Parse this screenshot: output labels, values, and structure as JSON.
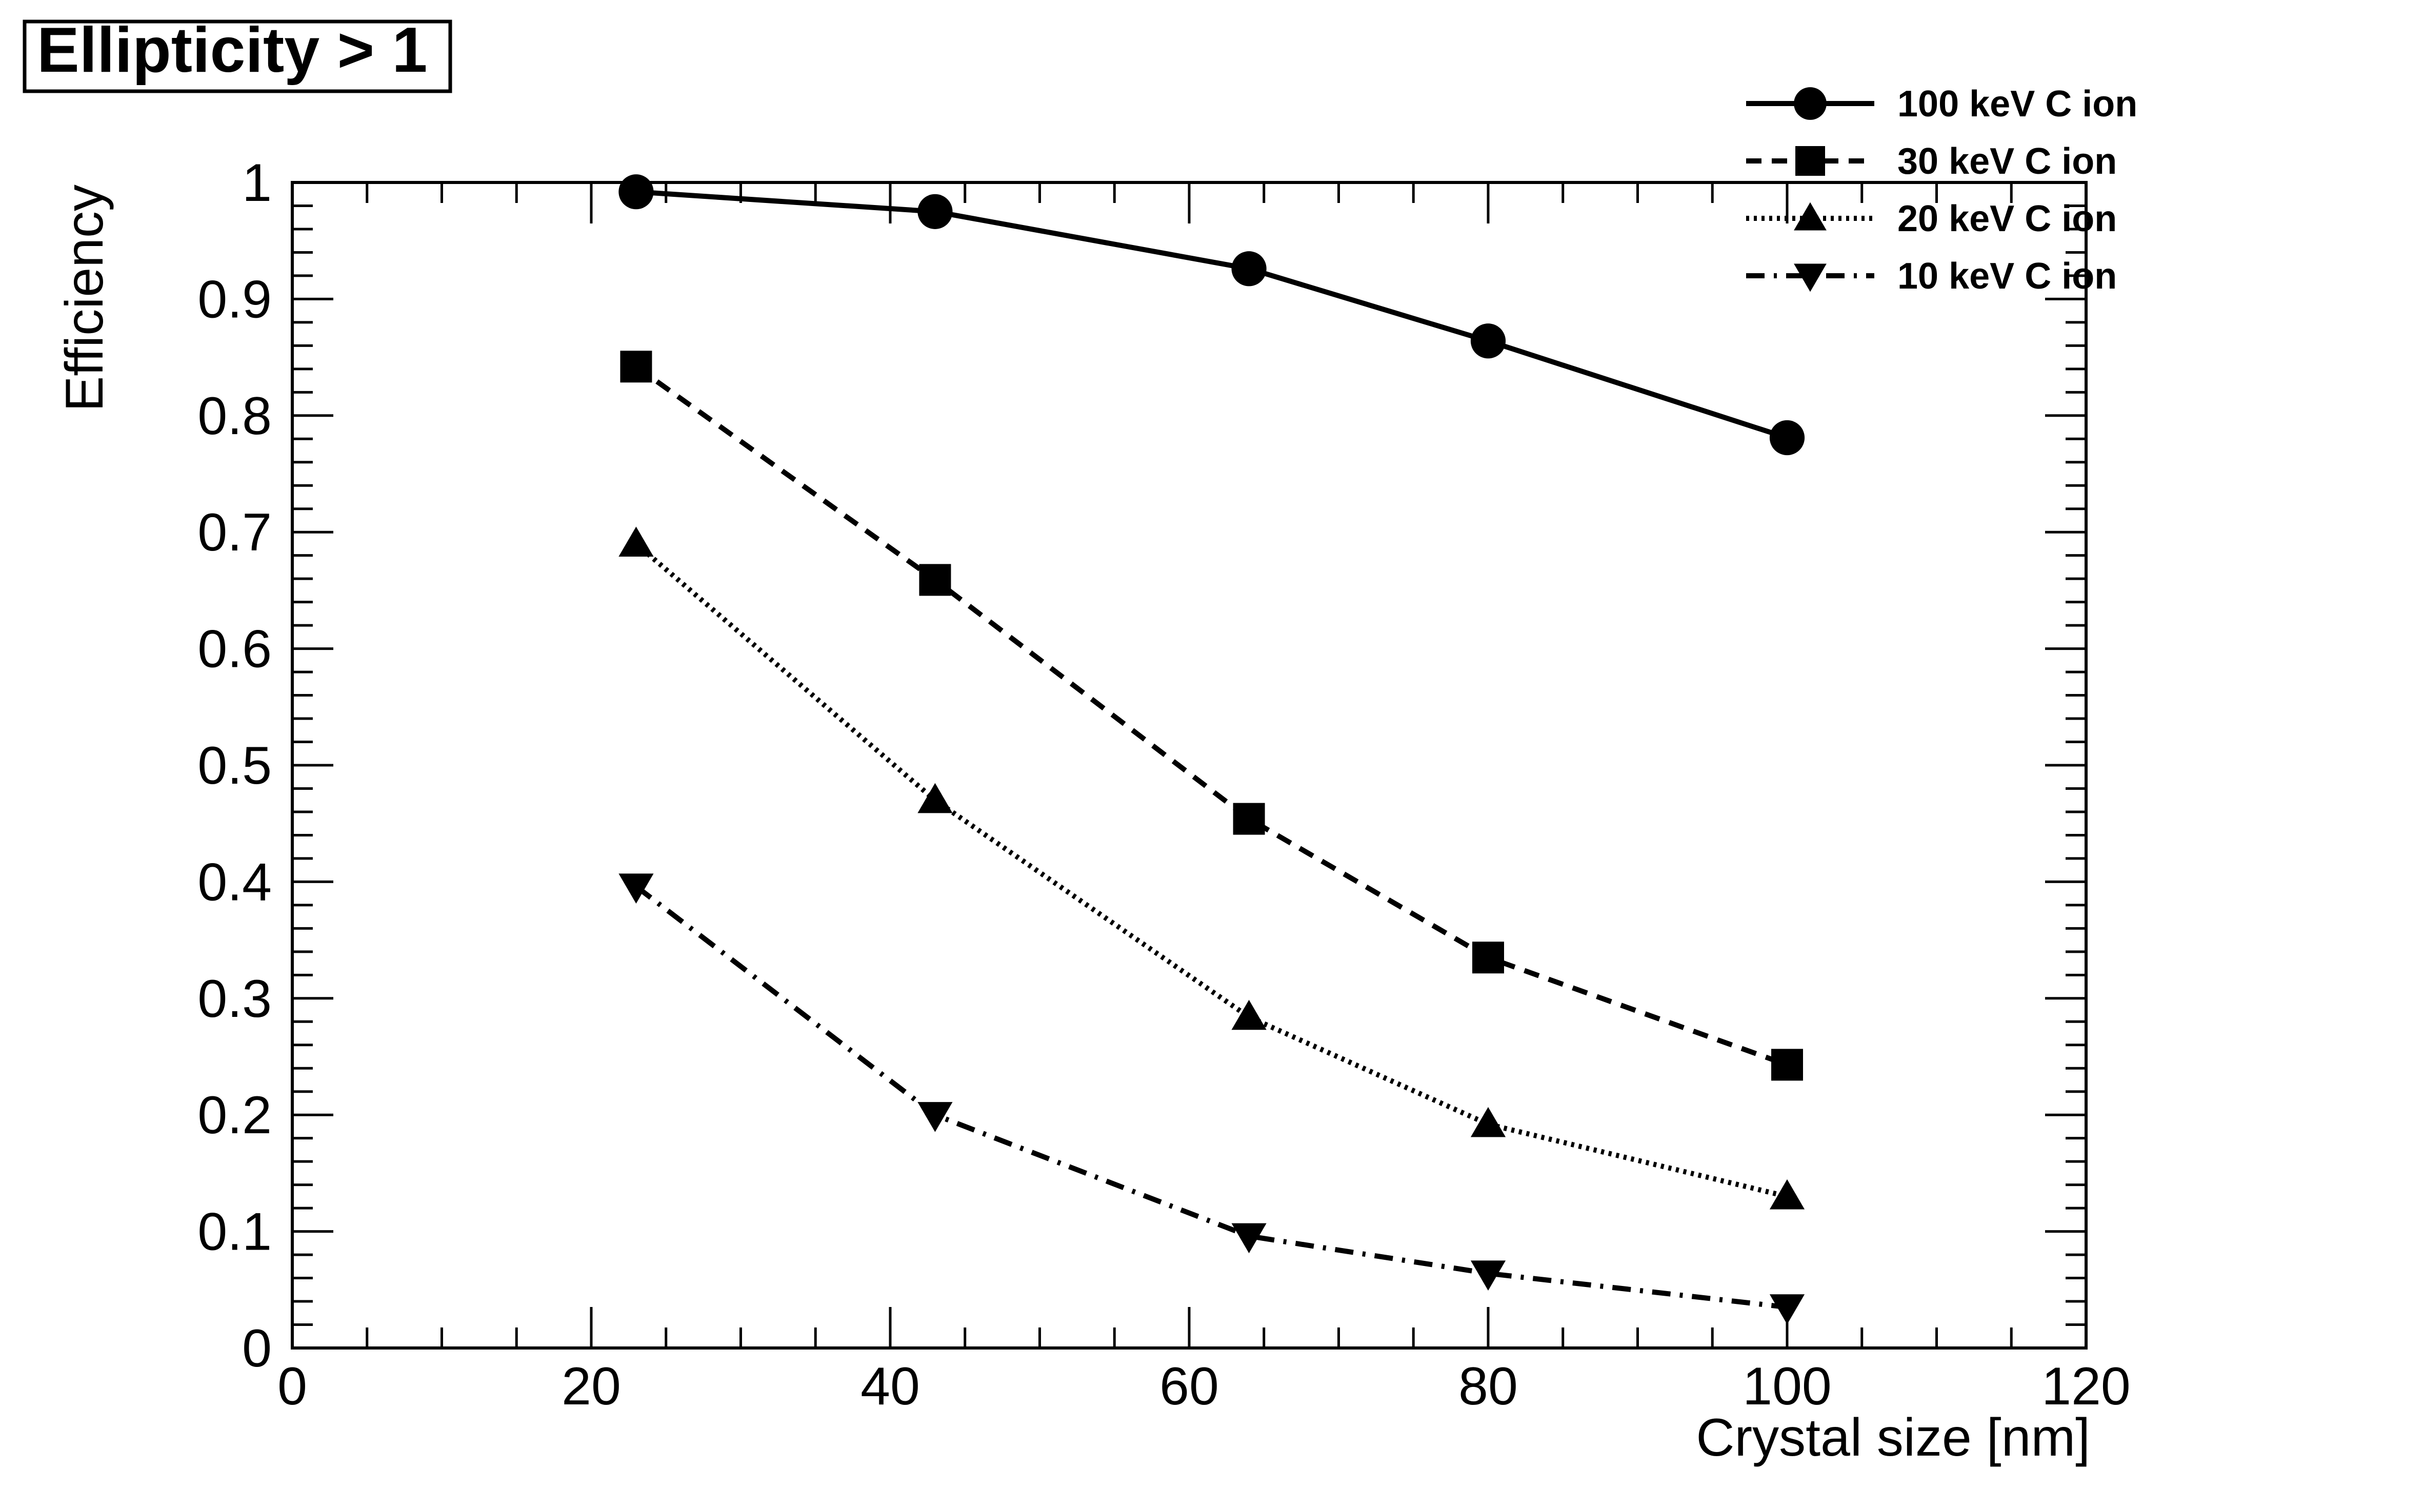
{
  "chart_data": {
    "type": "line",
    "title": "Ellipticity > 1",
    "xlabel": "Crystal size [nm]",
    "ylabel": "Efficiency",
    "xlim": [
      0,
      120
    ],
    "ylim": [
      0,
      1
    ],
    "x_ticks": [
      "0",
      "20",
      "40",
      "60",
      "80",
      "100",
      "120"
    ],
    "y_ticks": [
      "0",
      "0.1",
      "0.2",
      "0.3",
      "0.4",
      "0.5",
      "0.6",
      "0.7",
      "0.8",
      "0.9",
      "1"
    ],
    "grid": false,
    "legend_position": "top-right",
    "x": [
      23,
      43,
      64,
      80,
      100
    ],
    "series": [
      {
        "name": "100 keV C ion",
        "marker": "circle",
        "line_style": "solid",
        "values": [
          0.992,
          0.975,
          0.926,
          0.864,
          0.781
        ]
      },
      {
        "name": "30 keV C ion",
        "marker": "square",
        "line_style": "dashed",
        "values": [
          0.842,
          0.659,
          0.454,
          0.335,
          0.243
        ]
      },
      {
        "name": "20 keV C ion",
        "marker": "triangle-up",
        "line_style": "dotted",
        "values": [
          0.69,
          0.47,
          0.284,
          0.192,
          0.13
        ]
      },
      {
        "name": "10 keV C ion",
        "marker": "triangle-down",
        "line_style": "dash-dot",
        "values": [
          0.396,
          0.2,
          0.096,
          0.064,
          0.035
        ]
      }
    ],
    "colors": {
      "line": "#000000",
      "background": "#ffffff"
    }
  }
}
